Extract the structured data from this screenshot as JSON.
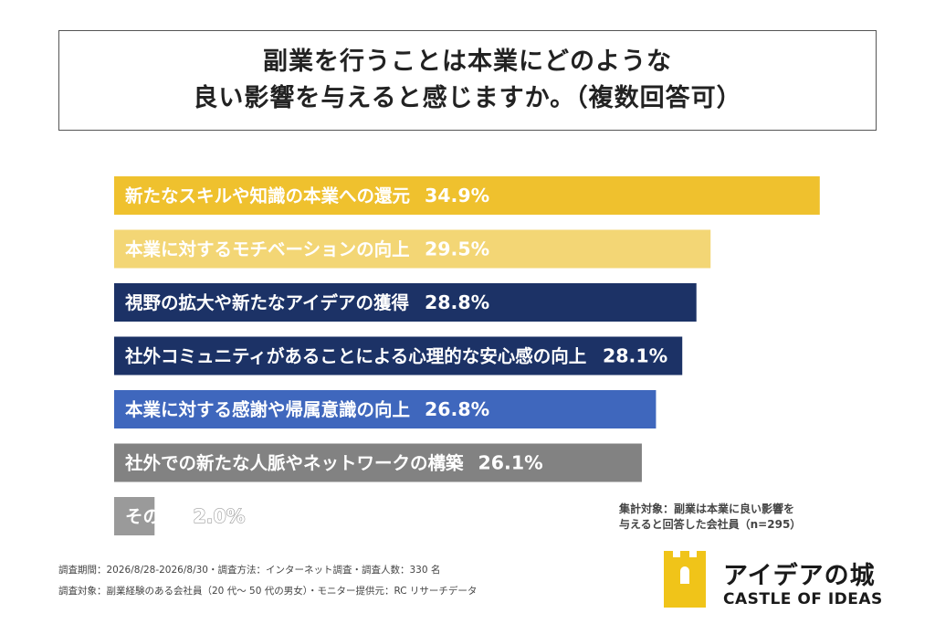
{
  "title": {
    "line1": "副業を行うことは本業にどのような",
    "line2": "良い影響を与えると感じますか。（複数回答可）"
  },
  "chart_data": {
    "type": "bar",
    "orientation": "horizontal",
    "xlim": [
      0,
      35
    ],
    "categories": [
      "新たなスキルや知識の本業への還元",
      "本業に対するモチベーションの向上",
      "視野の拡大や新たなアイデアの獲得",
      "社外コミュニティがあることによる心理的な安心感の向上",
      "本業に対する感謝や帰属意識の向上",
      "社外での新たな人脈やネットワークの構築",
      "その他"
    ],
    "values": [
      34.9,
      29.5,
      28.8,
      28.1,
      26.8,
      26.1,
      2.0
    ],
    "value_labels": [
      "34.9%",
      "29.5%",
      "28.8%",
      "28.1%",
      "26.8%",
      "26.1%",
      "2.0%"
    ],
    "colors": [
      "#efc12e",
      "#f3d675",
      "#1c3266",
      "#1c3266",
      "#3f67bd",
      "#828282",
      "#9a9a9a"
    ],
    "grid": false,
    "legend": "none"
  },
  "note": {
    "line1": "集計対象：副業は本業に良い影響を",
    "line2": "与えると回答した会社員（n=295）"
  },
  "footer": {
    "line1": "調査期間：2026/8/28-2026/8/30・調査方法：インターネット調査・調査人数：330 名",
    "line2": "調査対象：副業経験のある会社員（20 代〜 50 代の男女）・モニター提供元：RC リサーチデータ"
  },
  "logo": {
    "name": "アイデアの城",
    "sub": "CASTLE OF IDEAS",
    "color": "#f0c419"
  }
}
